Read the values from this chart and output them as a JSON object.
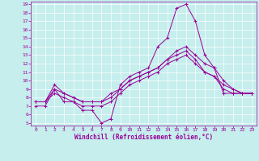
{
  "xlabel": "Windchill (Refroidissement éolien,°C)",
  "xlim": [
    -0.5,
    23.5
  ],
  "ylim": [
    4.7,
    19.3
  ],
  "xticks": [
    0,
    1,
    2,
    3,
    4,
    5,
    6,
    7,
    8,
    9,
    10,
    11,
    12,
    13,
    14,
    15,
    16,
    17,
    18,
    19,
    20,
    21,
    22,
    23
  ],
  "yticks": [
    5,
    6,
    7,
    8,
    9,
    10,
    11,
    12,
    13,
    14,
    15,
    16,
    17,
    18,
    19
  ],
  "bg_color": "#c5eeed",
  "line_color": "#990099",
  "grid_color": "#ffffff",
  "line1": [
    7.0,
    7.0,
    9.0,
    7.5,
    7.5,
    6.5,
    6.5,
    5.0,
    5.5,
    9.5,
    10.5,
    11.0,
    11.5,
    14.0,
    15.0,
    18.5,
    19.0,
    17.0,
    13.0,
    11.5,
    8.5,
    8.5,
    8.5,
    8.5
  ],
  "line2": [
    7.5,
    7.5,
    9.5,
    8.5,
    8.0,
    7.5,
    7.5,
    7.5,
    8.0,
    9.0,
    10.0,
    10.5,
    11.0,
    11.5,
    12.5,
    13.0,
    13.5,
    12.5,
    11.0,
    10.5,
    9.5,
    9.0,
    8.5,
    8.5
  ],
  "line3": [
    7.5,
    7.5,
    9.0,
    8.5,
    8.0,
    7.5,
    7.5,
    7.5,
    8.5,
    9.0,
    10.0,
    10.5,
    11.0,
    11.5,
    12.5,
    13.5,
    14.0,
    13.0,
    12.0,
    11.5,
    10.0,
    9.0,
    8.5,
    8.5
  ],
  "line4": [
    7.5,
    7.5,
    8.5,
    8.0,
    7.5,
    7.0,
    7.0,
    7.0,
    7.5,
    8.5,
    9.5,
    10.0,
    10.5,
    11.0,
    12.0,
    12.5,
    13.0,
    12.0,
    11.0,
    10.5,
    9.0,
    8.5,
    8.5,
    8.5
  ],
  "xlabel_fontsize": 5.5,
  "tick_fontsize": 4.5,
  "linewidth": 0.7,
  "markersize": 2.5
}
